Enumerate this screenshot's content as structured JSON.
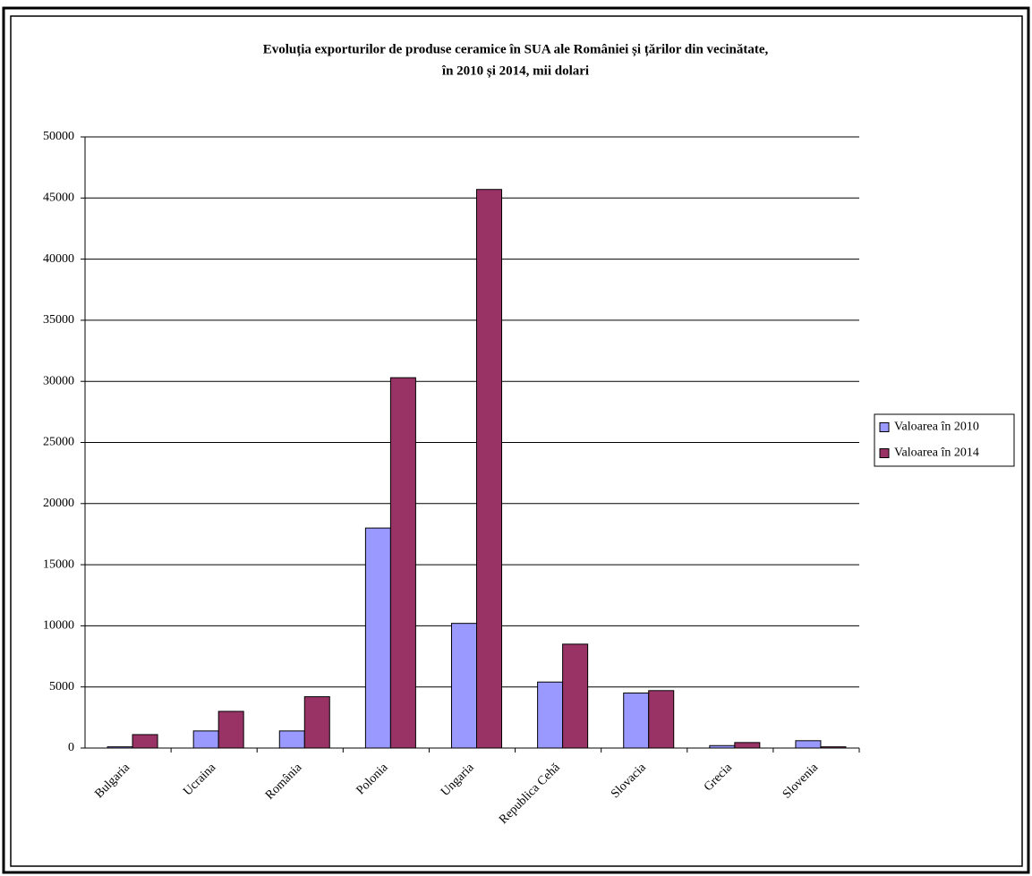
{
  "chart_data": {
    "type": "bar",
    "title": "Evoluția exporturilor de produse ceramice în SUA ale României și țărilor din vecinătate,",
    "subtitle": "în 2010 și 2014, mii dolari",
    "categories": [
      "Bulgaria",
      "Ucraina",
      "România",
      "Polonia",
      "Ungaria",
      "Republica Cehă",
      "Slovacia",
      "Grecia",
      "Slovenia"
    ],
    "series": [
      {
        "name": "Valoarea în 2010",
        "color": "#9999ff",
        "values": [
          100,
          1400,
          1400,
          18000,
          10200,
          5400,
          4500,
          200,
          600
        ]
      },
      {
        "name": "Valoarea în 2014",
        "color": "#993366",
        "values": [
          1100,
          3000,
          4200,
          30300,
          45700,
          8500,
          4700,
          450,
          100
        ]
      }
    ],
    "ylim": [
      0,
      50000
    ],
    "yticks": [
      0,
      5000,
      10000,
      15000,
      20000,
      25000,
      30000,
      35000,
      40000,
      45000,
      50000
    ],
    "grid": true,
    "legend": "right"
  }
}
